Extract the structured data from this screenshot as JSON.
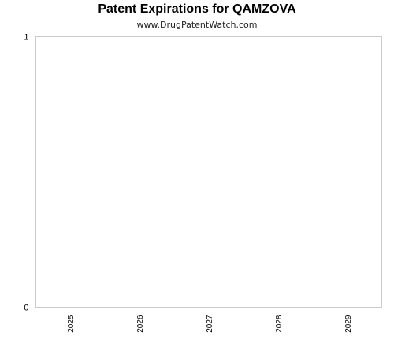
{
  "chart_data": {
    "type": "bar",
    "title": "Patent Expirations for QAMZOVA",
    "subtitle": "www.DrugPatentWatch.com",
    "categories": [
      "2025",
      "2026",
      "2027",
      "2028",
      "2029"
    ],
    "values": [
      0,
      0,
      0,
      0,
      0
    ],
    "ylim": [
      0,
      1
    ],
    "yticks": [
      "0",
      "1"
    ],
    "xlabel": "",
    "ylabel": "",
    "grid": false,
    "colors": {
      "plot_border": "#cccccc",
      "text": "#000000",
      "bar": "#4472c4"
    }
  }
}
